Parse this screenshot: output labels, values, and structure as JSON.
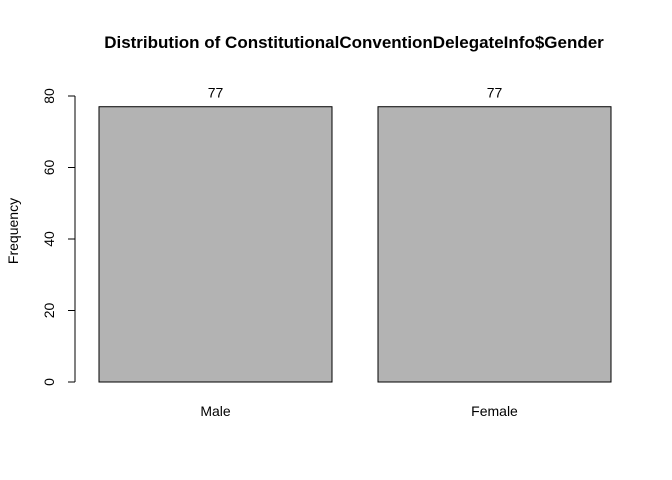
{
  "chart_data": {
    "type": "bar",
    "title": "Distribution of ConstitutionalConventionDelegateInfo$Gender",
    "xlabel": "",
    "ylabel": "Frequency",
    "categories": [
      "Male",
      "Female"
    ],
    "values": [
      77,
      77
    ],
    "value_labels": [
      "77",
      "77"
    ],
    "ylim": [
      0,
      80
    ],
    "yticks": [
      0,
      20,
      40,
      60,
      80
    ],
    "bar_color": "#b3b3b3",
    "grid": false,
    "legend": "none"
  }
}
